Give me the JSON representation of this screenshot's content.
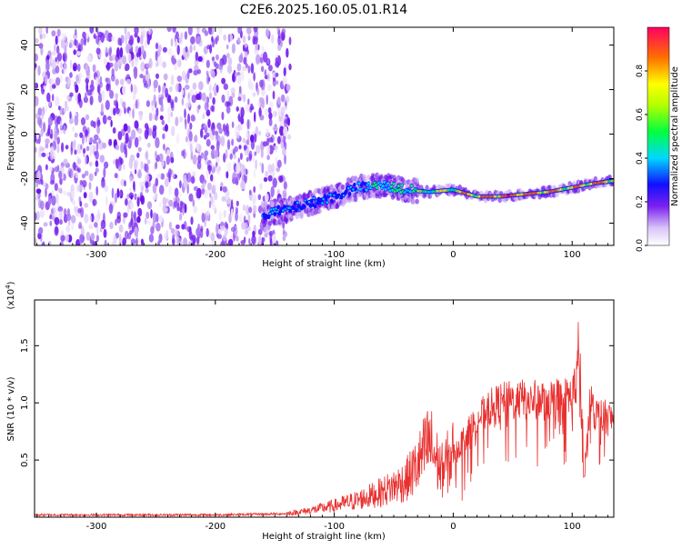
{
  "title": "C2E6.2025.160.05.01.R14",
  "colors": {
    "snr_line": "#e8302f",
    "colormap": [
      "#ffffff",
      "#e8d8f8",
      "#a070f0",
      "#6a10e8",
      "#1a10ff",
      "#00c8ff",
      "#00ff60",
      "#ffff00",
      "#ff6a00",
      "#ff0044"
    ]
  },
  "chart_data": [
    {
      "type": "heatmap",
      "name": "spectrogram",
      "xlabel": "Height of straight line (km)",
      "ylabel": "Frequency (Hz)",
      "xlim": [
        -352,
        135
      ],
      "ylim": [
        -50,
        48
      ],
      "xticks": [
        -300,
        -200,
        -100,
        0,
        100
      ],
      "xtick_labels": [
        "-300",
        "-200",
        "-100",
        "0",
        "100"
      ],
      "yticks": [
        -40,
        -20,
        0,
        20,
        40
      ],
      "ytick_labels": [
        "-40",
        "-20",
        "0",
        "20",
        "40"
      ],
      "noise_region": {
        "x_start": -352,
        "x_end": -145
      },
      "trace": {
        "x": [
          -160,
          -140,
          -120,
          -100,
          -80,
          -60,
          -40,
          -20,
          0,
          20,
          40,
          60,
          80,
          100,
          120,
          135
        ],
        "y": [
          -36,
          -34,
          -31,
          -28,
          -24,
          -23,
          -25,
          -26,
          -25,
          -28,
          -28,
          -27,
          -26,
          -24,
          -22,
          -21
        ],
        "peak_amplitude": [
          0.5,
          0.55,
          0.55,
          0.6,
          0.6,
          0.65,
          0.7,
          0.75,
          0.8,
          0.9,
          0.95,
          0.95,
          0.9,
          0.85,
          0.9,
          0.9
        ]
      },
      "colorbar": {
        "label": "Normalized spectral amplitude",
        "range": [
          0,
          1
        ],
        "ticks": [
          0.0,
          0.2,
          0.4,
          0.6,
          0.8
        ],
        "tick_labels": [
          "0.0",
          "0.2",
          "0.4",
          "0.6",
          "0.8"
        ]
      }
    },
    {
      "type": "line",
      "name": "snr",
      "xlabel": "Height of straight line (km)",
      "ylabel": "SNR (10 * v/v)",
      "exponent_label": "(x10",
      "exponent_power": "4",
      "exponent_close": ")",
      "xlim": [
        -352,
        135
      ],
      "ylim": [
        0,
        1.9
      ],
      "xticks": [
        -300,
        -200,
        -100,
        0,
        100
      ],
      "xtick_labels": [
        "-300",
        "-200",
        "-100",
        "0",
        "100"
      ],
      "yticks": [
        0.5,
        1.0,
        1.5
      ],
      "ytick_labels": [
        "0.5",
        "1.0",
        "1.5"
      ],
      "series": [
        {
          "x": [
            -352,
            -200,
            -140,
            -120,
            -100,
            -80,
            -60,
            -40,
            -30,
            -20,
            -10,
            0,
            10,
            20,
            30,
            40,
            50,
            60,
            70,
            80,
            90,
            100,
            105,
            110,
            115,
            120,
            135
          ],
          "y": [
            0.02,
            0.02,
            0.03,
            0.06,
            0.1,
            0.15,
            0.22,
            0.32,
            0.45,
            0.65,
            0.4,
            0.55,
            0.7,
            0.85,
            0.95,
            1.0,
            1.02,
            1.03,
            1.02,
            1.03,
            1.04,
            1.05,
            1.3,
            0.3,
            1.0,
            0.9,
            0.85
          ]
        }
      ]
    }
  ]
}
